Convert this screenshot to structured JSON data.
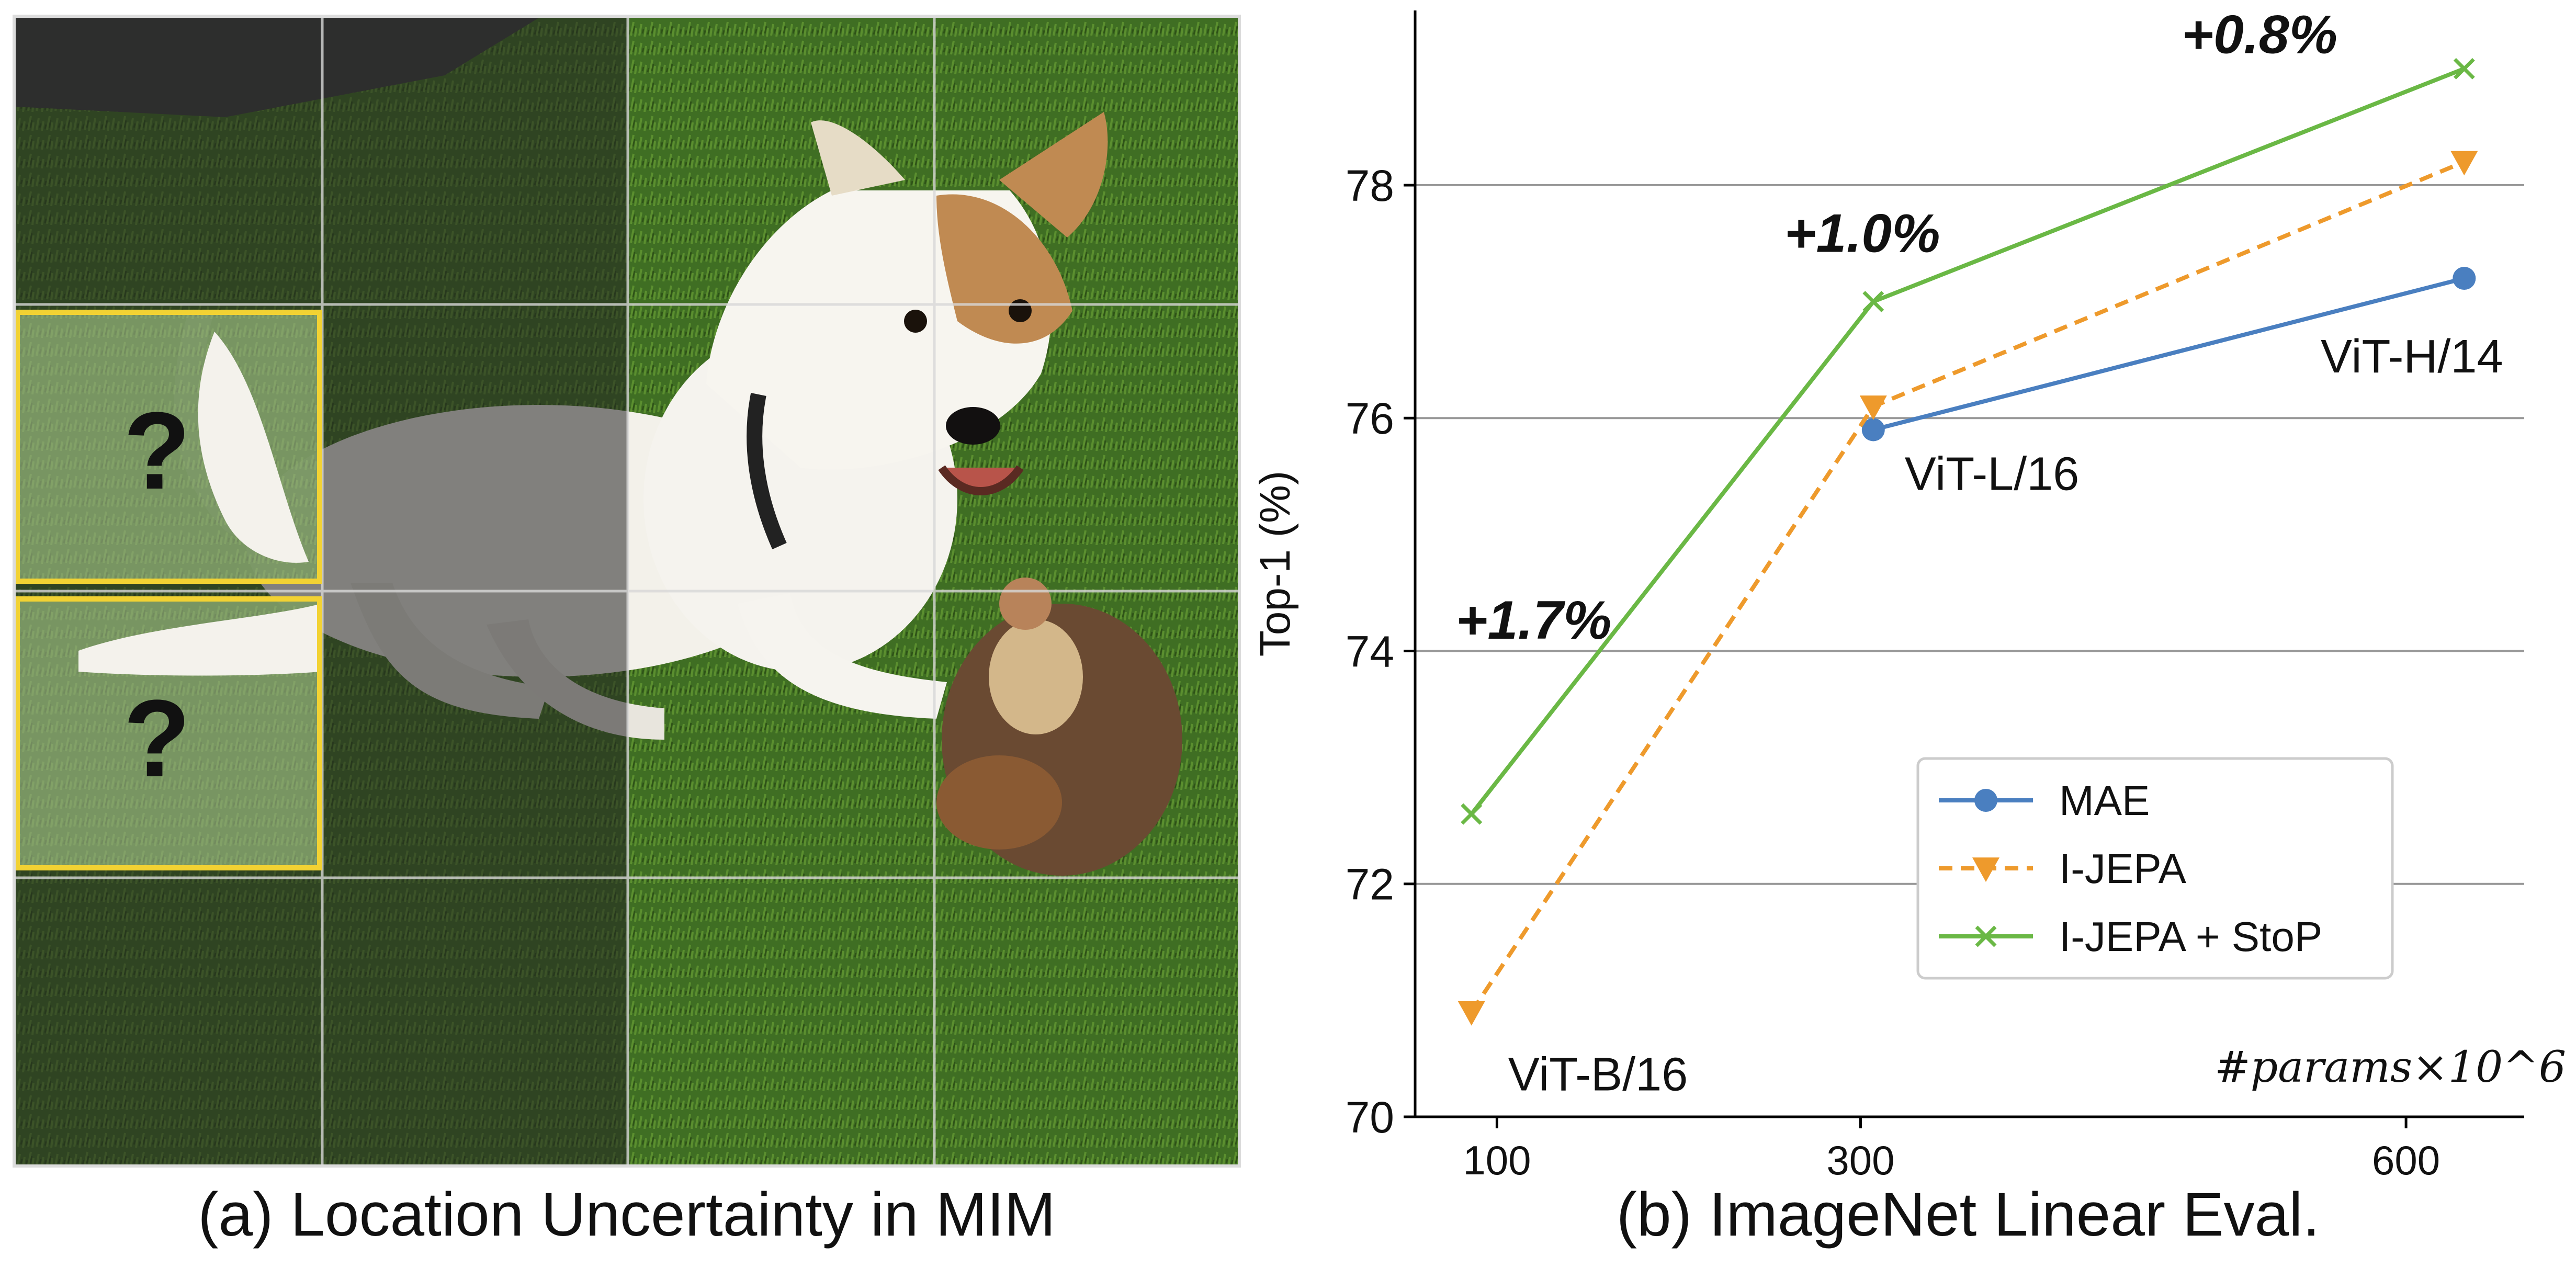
{
  "panel_a": {
    "caption": "(a) Location Uncertainty in MIM",
    "masked_patches": [
      "?",
      "?"
    ]
  },
  "panel_b": {
    "caption": "(b) ImageNet Linear Eval."
  },
  "chart_data": {
    "type": "line",
    "title": "",
    "xlabel": "#params×10^6",
    "ylabel": "Top-1 (%)",
    "xlim": [
      55,
      665
    ],
    "ylim": [
      70,
      79.5
    ],
    "x_ticks": [
      100,
      300,
      600
    ],
    "x_tick_labels": [
      "100",
      "300",
      "600"
    ],
    "y_ticks": [
      70,
      72,
      74,
      76,
      78
    ],
    "y_tick_labels": [
      "70",
      "72",
      "74",
      "76",
      "78"
    ],
    "grid": "horizontal",
    "legend_position": "lower-right",
    "series": [
      {
        "name": "MAE",
        "color": "#4a7fc0",
        "style": "solid",
        "marker": "circle",
        "x": [
          307,
          632
        ],
        "y": [
          75.9,
          77.2
        ]
      },
      {
        "name": "I-JEPA",
        "color": "#ee9a2c",
        "style": "dashed",
        "marker": "triangle-down",
        "x": [
          86,
          307,
          632
        ],
        "y": [
          70.9,
          76.1,
          78.2
        ]
      },
      {
        "name": "I-JEPA + StoP",
        "color": "#6ab845",
        "style": "solid",
        "marker": "x",
        "x": [
          86,
          307,
          632
        ],
        "y": [
          72.6,
          77.0,
          79.0
        ]
      }
    ],
    "point_annotations": [
      {
        "text": "ViT-B/16",
        "x": 86,
        "y": 70.9
      },
      {
        "text": "ViT-L/16",
        "x": 307,
        "y": 75.9
      },
      {
        "text": "ViT-H/14",
        "x": 632,
        "y": 77.2
      }
    ],
    "gain_annotations": [
      {
        "text": "+1.7%",
        "x": 86,
        "y": 72.6
      },
      {
        "text": "+1.0%",
        "x": 307,
        "y": 77.0
      },
      {
        "text": "+0.8%",
        "x": 632,
        "y": 79.0
      }
    ],
    "colors": {
      "axis": "#000000",
      "grid": "#999999",
      "legend_border": "#cccccc"
    }
  }
}
